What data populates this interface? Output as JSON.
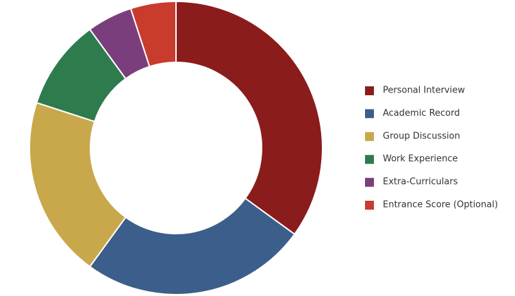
{
  "chart_data": {
    "type": "donut",
    "categories": [
      "Personal Interview",
      "Academic Record",
      "Group Discussion",
      "Work Experience",
      "Extra-Curriculars",
      "Entrance Score (Optional)"
    ],
    "values": [
      35,
      25,
      20,
      10,
      5,
      5
    ],
    "colors": [
      "#8b1c1c",
      "#3b5e8a",
      "#c9a84b",
      "#2e7b4e",
      "#7a3e7d",
      "#c93b2d"
    ],
    "legend": "right"
  }
}
